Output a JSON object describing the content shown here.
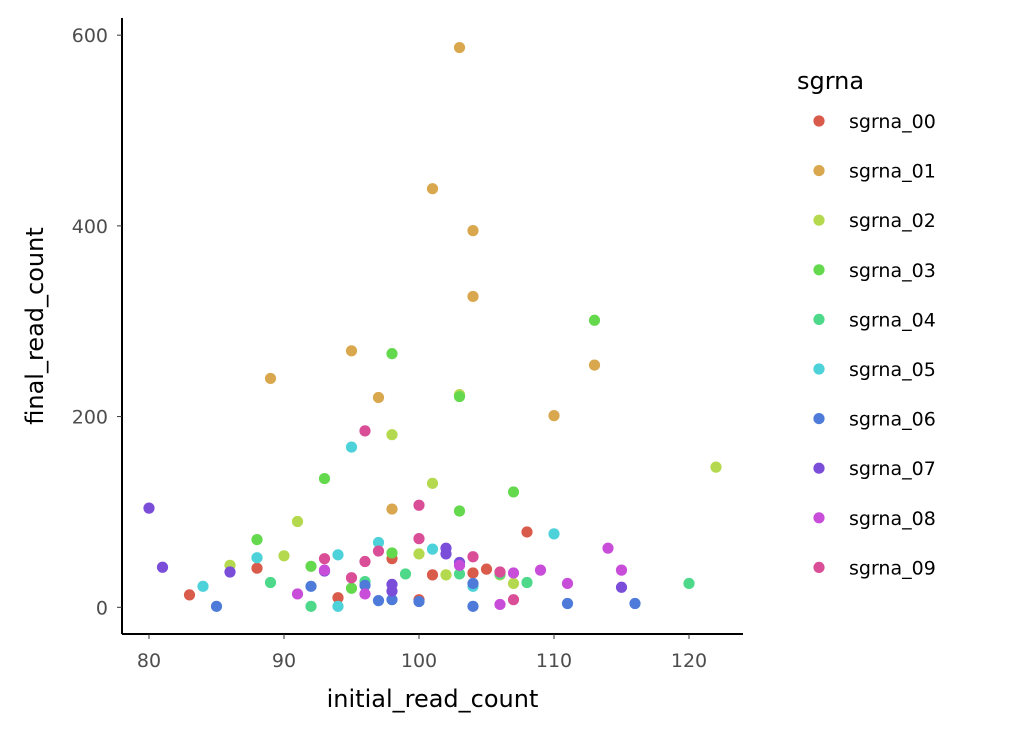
{
  "chart_data": {
    "type": "scatter",
    "title": "",
    "xlabel": "initial_read_count",
    "ylabel": "final_read_count",
    "xlim": [
      78,
      124
    ],
    "ylim": [
      -28,
      618
    ],
    "x_ticks": [
      80,
      90,
      100,
      110,
      120
    ],
    "y_ticks": [
      0,
      200,
      400,
      600
    ],
    "grid": false,
    "legend": {
      "title": "sgrna",
      "placement": "right"
    },
    "series": [
      {
        "name": "sgrna_00",
        "color": "#d95b4b",
        "points": [
          [
            83,
            13
          ],
          [
            88,
            41
          ],
          [
            94,
            10
          ],
          [
            98,
            51
          ],
          [
            100,
            8
          ],
          [
            101,
            34
          ],
          [
            104,
            36
          ],
          [
            105,
            40
          ],
          [
            108,
            79
          ]
        ]
      },
      {
        "name": "sgrna_01",
        "color": "#d9a84e",
        "points": [
          [
            89,
            240
          ],
          [
            95,
            269
          ],
          [
            97,
            220
          ],
          [
            98,
            103
          ],
          [
            101,
            439
          ],
          [
            103,
            587
          ],
          [
            104,
            395
          ],
          [
            104,
            326
          ],
          [
            110,
            201
          ],
          [
            113,
            254
          ]
        ]
      },
      {
        "name": "sgrna_02",
        "color": "#b5d94e",
        "points": [
          [
            86,
            44
          ],
          [
            90,
            54
          ],
          [
            91,
            90
          ],
          [
            98,
            181
          ],
          [
            100,
            56
          ],
          [
            101,
            130
          ],
          [
            102,
            34
          ],
          [
            103,
            223
          ],
          [
            106,
            34
          ],
          [
            107,
            25
          ],
          [
            122,
            147
          ]
        ]
      },
      {
        "name": "sgrna_03",
        "color": "#64d94e",
        "points": [
          [
            88,
            71
          ],
          [
            92,
            43
          ],
          [
            93,
            135
          ],
          [
            95,
            20
          ],
          [
            98,
            57
          ],
          [
            98,
            266
          ],
          [
            103,
            101
          ],
          [
            103,
            221
          ],
          [
            107,
            121
          ],
          [
            113,
            301
          ]
        ]
      },
      {
        "name": "sgrna_04",
        "color": "#4ed98a",
        "points": [
          [
            89,
            26
          ],
          [
            92,
            1
          ],
          [
            96,
            27
          ],
          [
            99,
            35
          ],
          [
            103,
            35
          ],
          [
            106,
            35
          ],
          [
            108,
            26
          ],
          [
            120,
            25
          ]
        ]
      },
      {
        "name": "sgrna_05",
        "color": "#4ed2d9",
        "points": [
          [
            84,
            22
          ],
          [
            88,
            52
          ],
          [
            94,
            55
          ],
          [
            94,
            1
          ],
          [
            95,
            168
          ],
          [
            97,
            68
          ],
          [
            101,
            61
          ],
          [
            104,
            22
          ],
          [
            110,
            77
          ]
        ]
      },
      {
        "name": "sgrna_06",
        "color": "#4e7bd9",
        "points": [
          [
            85,
            1
          ],
          [
            92,
            22
          ],
          [
            96,
            23
          ],
          [
            97,
            7
          ],
          [
            98,
            8
          ],
          [
            100,
            6
          ],
          [
            104,
            1
          ],
          [
            104,
            25
          ],
          [
            111,
            4
          ],
          [
            116,
            4
          ]
        ]
      },
      {
        "name": "sgrna_07",
        "color": "#7b4ed9",
        "points": [
          [
            80,
            104
          ],
          [
            81,
            42
          ],
          [
            86,
            37
          ],
          [
            93,
            38
          ],
          [
            98,
            24
          ],
          [
            98,
            17
          ],
          [
            102,
            62
          ],
          [
            102,
            56
          ],
          [
            103,
            47
          ],
          [
            115,
            21
          ]
        ]
      },
      {
        "name": "sgrna_08",
        "color": "#c84ed9",
        "points": [
          [
            91,
            14
          ],
          [
            93,
            39
          ],
          [
            96,
            14
          ],
          [
            103,
            44
          ],
          [
            106,
            3
          ],
          [
            107,
            36
          ],
          [
            109,
            39
          ],
          [
            111,
            25
          ],
          [
            114,
            62
          ],
          [
            115,
            39
          ]
        ]
      },
      {
        "name": "sgrna_09",
        "color": "#d94e96",
        "points": [
          [
            93,
            51
          ],
          [
            95,
            31
          ],
          [
            96,
            48
          ],
          [
            96,
            185
          ],
          [
            97,
            59
          ],
          [
            100,
            107
          ],
          [
            100,
            72
          ],
          [
            104,
            53
          ],
          [
            106,
            37
          ],
          [
            107,
            8
          ]
        ]
      }
    ]
  }
}
